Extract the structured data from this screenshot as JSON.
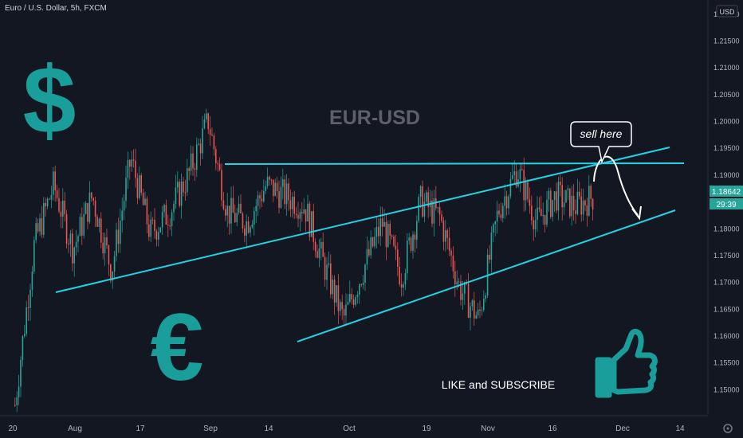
{
  "header": {
    "symbol_title": "Euro / U.S. Dollar, 5h, FXCM"
  },
  "overlay": {
    "pair_title": "EUR-USD",
    "callout": "sell here",
    "cta": "LIKE and SUBSCRIBE",
    "dollar_glyph": "$",
    "euro_glyph": "€"
  },
  "price_axis": {
    "currency_badge": "USD",
    "ticks": [
      "1.22000",
      "1.21500",
      "1.21000",
      "1.20500",
      "1.20000",
      "1.19500",
      "1.19000",
      "1.18500",
      "1.18000",
      "1.17500",
      "1.17000",
      "1.16500",
      "1.16000",
      "1.15500",
      "1.15000"
    ],
    "last_price": "1.18642",
    "countdown": "29:39"
  },
  "time_axis": {
    "ticks": [
      "20",
      "Aug",
      "17",
      "Sep",
      "14",
      "Oct",
      "19",
      "Nov",
      "16",
      "Dec",
      "14"
    ]
  },
  "colors": {
    "background": "#131722",
    "up": "#26a69a",
    "down": "#ef5350",
    "trendline": "#22d3e6",
    "icon_teal": "#1a9e9b",
    "last_price_bg": "#26a69a"
  },
  "chart_data": {
    "type": "candlestick",
    "ylim": [
      1.145,
      1.2225
    ],
    "close_path": [
      {
        "x": "Jul 20",
        "y": 1.147
      },
      {
        "x": "Jul 27",
        "y": 1.177
      },
      {
        "x": "Aug 1",
        "y": 1.188
      },
      {
        "x": "Aug 4",
        "y": 1.176
      },
      {
        "x": "Aug 7",
        "y": 1.186
      },
      {
        "x": "Aug 12",
        "y": 1.172
      },
      {
        "x": "Aug 18",
        "y": 1.193
      },
      {
        "x": "Aug 21",
        "y": 1.179
      },
      {
        "x": "Aug 24",
        "y": 1.183
      },
      {
        "x": "Aug 28",
        "y": 1.19
      },
      {
        "x": "Sep 1",
        "y": 1.2
      },
      {
        "x": "Sep 3",
        "y": 1.183
      },
      {
        "x": "Sep 9",
        "y": 1.181
      },
      {
        "x": "Sep 10",
        "y": 1.188
      },
      {
        "x": "Sep 15",
        "y": 1.186
      },
      {
        "x": "Sep 18",
        "y": 1.184
      },
      {
        "x": "Sep 21",
        "y": 1.173
      },
      {
        "x": "Sep 25",
        "y": 1.163
      },
      {
        "x": "Sep 30",
        "y": 1.172
      },
      {
        "x": "Oct 8",
        "y": 1.181
      },
      {
        "x": "Oct 15",
        "y": 1.171
      },
      {
        "x": "Oct 20",
        "y": 1.185
      },
      {
        "x": "Oct 26",
        "y": 1.182
      },
      {
        "x": "Oct 29",
        "y": 1.169
      },
      {
        "x": "Nov 3",
        "y": 1.163
      },
      {
        "x": "Nov 6",
        "y": 1.183
      },
      {
        "x": "Nov 9",
        "y": 1.191
      },
      {
        "x": "Nov 10",
        "y": 1.181
      },
      {
        "x": "Nov 18",
        "y": 1.186
      },
      {
        "x": "Nov 23",
        "y": 1.184
      },
      {
        "x": "Nov 24",
        "y": 1.186
      }
    ]
  }
}
